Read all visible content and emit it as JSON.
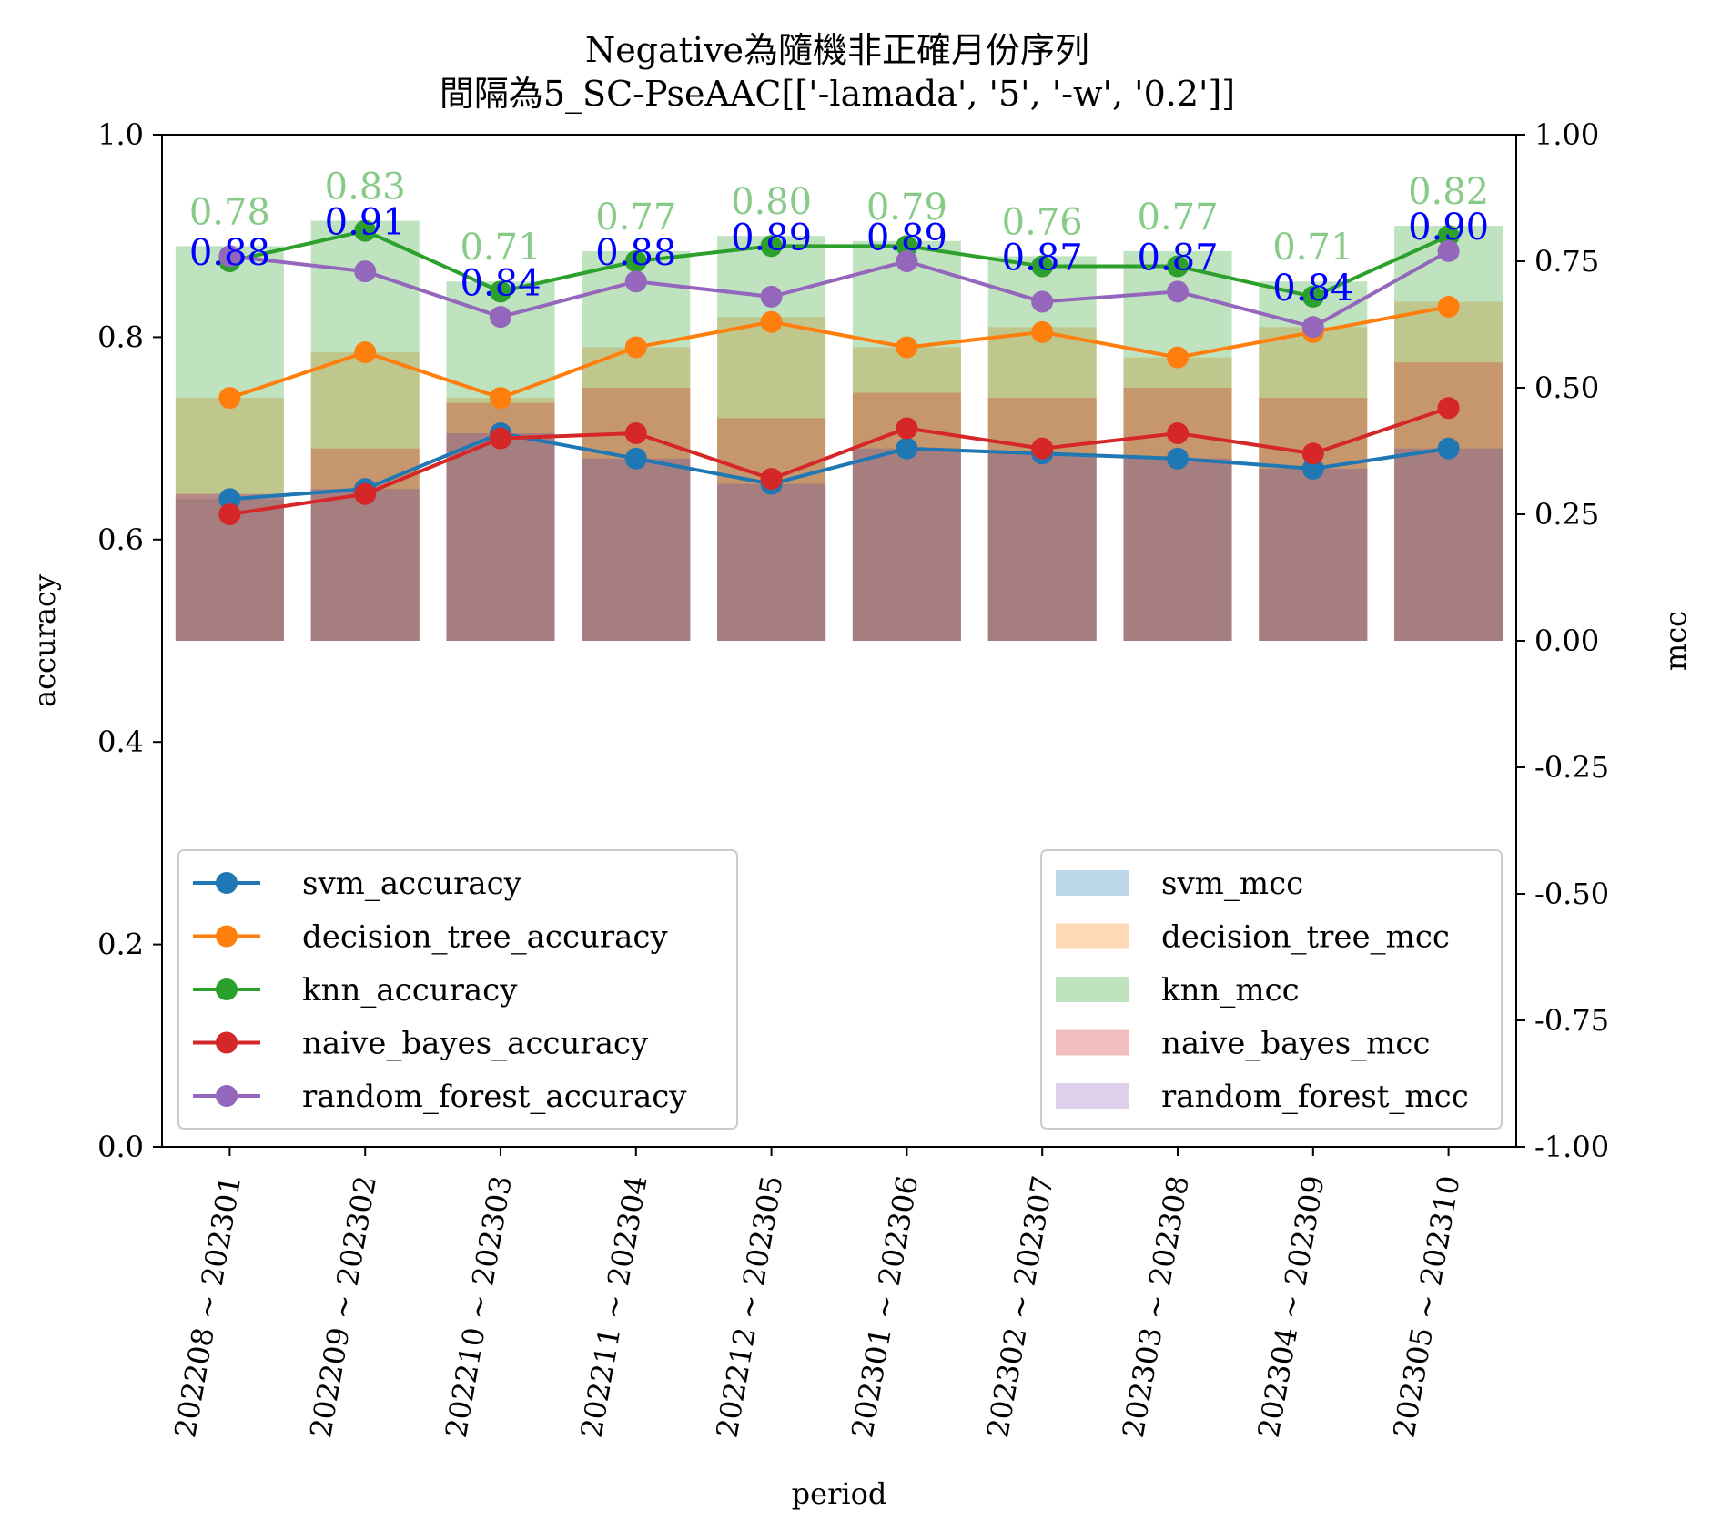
{
  "chart_data": {
    "type": "bar+line",
    "title_line1": "Negative為隨機非正確月份序列",
    "title_line2": "間隔為5_SC-PseAAC[['-lamada', '5', '-w', '0.2']]",
    "xlabel": "period",
    "ylabel_left": "accuracy",
    "ylabel_right": "mcc",
    "ylim_left": [
      0.0,
      1.0
    ],
    "ylim_right": [
      -1.0,
      1.0
    ],
    "yticks_left": [
      "0.0",
      "0.2",
      "0.4",
      "0.6",
      "0.8",
      "1.0"
    ],
    "yticks_right": [
      "-1.00",
      "-0.75",
      "-0.50",
      "-0.25",
      "0.00",
      "0.25",
      "0.50",
      "0.75",
      "1.00"
    ],
    "categories": [
      "202208 ~ 202301",
      "202209 ~ 202302",
      "202210 ~ 202303",
      "202211 ~ 202304",
      "202212 ~ 202305",
      "202301 ~ 202306",
      "202302 ~ 202307",
      "202303 ~ 202308",
      "202304 ~ 202309",
      "202305 ~ 202310"
    ],
    "accuracy_series": [
      {
        "name": "svm_accuracy",
        "color": "#1f77b4",
        "values": [
          0.64,
          0.65,
          0.705,
          0.68,
          0.655,
          0.69,
          0.685,
          0.68,
          0.67,
          0.69
        ]
      },
      {
        "name": "decision_tree_accuracy",
        "color": "#ff7f0e",
        "values": [
          0.74,
          0.785,
          0.74,
          0.79,
          0.815,
          0.79,
          0.805,
          0.78,
          0.805,
          0.83
        ]
      },
      {
        "name": "knn_accuracy",
        "color": "#2ca02c",
        "values": [
          0.875,
          0.905,
          0.845,
          0.875,
          0.89,
          0.89,
          0.87,
          0.87,
          0.84,
          0.9
        ]
      },
      {
        "name": "naive_bayes_accuracy",
        "color": "#d62728",
        "values": [
          0.625,
          0.645,
          0.7,
          0.705,
          0.66,
          0.71,
          0.69,
          0.705,
          0.685,
          0.73
        ]
      },
      {
        "name": "random_forest_accuracy",
        "color": "#9467bd",
        "values": [
          0.88,
          0.865,
          0.82,
          0.855,
          0.84,
          0.875,
          0.835,
          0.845,
          0.81,
          0.885
        ]
      }
    ],
    "mcc_series": [
      {
        "name": "svm_mcc",
        "color": "#1f77b4",
        "values": [
          0.28,
          0.3,
          0.41,
          0.36,
          0.31,
          0.38,
          0.37,
          0.36,
          0.34,
          0.38
        ]
      },
      {
        "name": "decision_tree_mcc",
        "color": "#ff7f0e",
        "values": [
          0.48,
          0.57,
          0.48,
          0.58,
          0.64,
          0.58,
          0.62,
          0.56,
          0.62,
          0.67
        ]
      },
      {
        "name": "knn_mcc",
        "color": "#2ca02c",
        "values": [
          0.78,
          0.83,
          0.71,
          0.77,
          0.8,
          0.79,
          0.76,
          0.77,
          0.71,
          0.82
        ]
      },
      {
        "name": "naive_bayes_mcc",
        "color": "#d62728",
        "values": [
          0.29,
          0.38,
          0.47,
          0.5,
          0.44,
          0.49,
          0.48,
          0.5,
          0.48,
          0.55
        ]
      },
      {
        "name": "random_forest_mcc",
        "color": "#9467bd",
        "values": [
          0.29,
          0.3,
          0.41,
          0.36,
          0.31,
          0.38,
          0.37,
          0.36,
          0.34,
          0.38
        ]
      }
    ],
    "accuracy_labels": [
      "0.88",
      "0.91",
      "0.84",
      "0.88",
      "0.89",
      "0.89",
      "0.87",
      "0.87",
      "0.84",
      "0.90"
    ],
    "mcc_labels": [
      "0.78",
      "0.83",
      "0.71",
      "0.77",
      "0.80",
      "0.79",
      "0.76",
      "0.77",
      "0.71",
      "0.82"
    ],
    "legend_accuracy_position": "lower-left",
    "legend_mcc_position": "lower-right",
    "grid": false
  }
}
